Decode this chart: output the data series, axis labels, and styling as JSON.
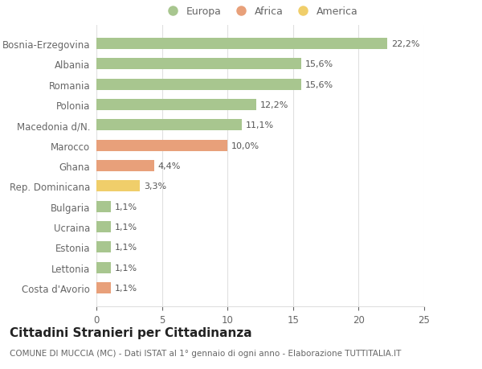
{
  "categories": [
    "Bosnia-Erzegovina",
    "Albania",
    "Romania",
    "Polonia",
    "Macedonia d/N.",
    "Marocco",
    "Ghana",
    "Rep. Dominicana",
    "Bulgaria",
    "Ucraina",
    "Estonia",
    "Lettonia",
    "Costa d'Avorio"
  ],
  "values": [
    22.2,
    15.6,
    15.6,
    12.2,
    11.1,
    10.0,
    4.4,
    3.3,
    1.1,
    1.1,
    1.1,
    1.1,
    1.1
  ],
  "labels": [
    "22,2%",
    "15,6%",
    "15,6%",
    "12,2%",
    "11,1%",
    "10,0%",
    "4,4%",
    "3,3%",
    "1,1%",
    "1,1%",
    "1,1%",
    "1,1%",
    "1,1%"
  ],
  "colors": [
    "#a8c68f",
    "#a8c68f",
    "#a8c68f",
    "#a8c68f",
    "#a8c68f",
    "#e8a07a",
    "#e8a07a",
    "#f0ce6a",
    "#a8c68f",
    "#a8c68f",
    "#a8c68f",
    "#a8c68f",
    "#e8a07a"
  ],
  "legend": [
    {
      "label": "Europa",
      "color": "#a8c68f"
    },
    {
      "label": "Africa",
      "color": "#e8a07a"
    },
    {
      "label": "America",
      "color": "#f0ce6a"
    }
  ],
  "xlim": [
    0,
    25
  ],
  "xticks": [
    0,
    5,
    10,
    15,
    20,
    25
  ],
  "title": "Cittadini Stranieri per Cittadinanza",
  "subtitle": "COMUNE DI MUCCIA (MC) - Dati ISTAT al 1° gennaio di ogni anno - Elaborazione TUTTITALIA.IT",
  "bg_color": "#ffffff",
  "bar_height": 0.55,
  "label_fontsize": 8.0,
  "ytick_fontsize": 8.5,
  "xtick_fontsize": 8.5,
  "title_fontsize": 11,
  "subtitle_fontsize": 7.5,
  "grid_color": "#e0e0e0",
  "text_color": "#666666",
  "label_color": "#555555"
}
